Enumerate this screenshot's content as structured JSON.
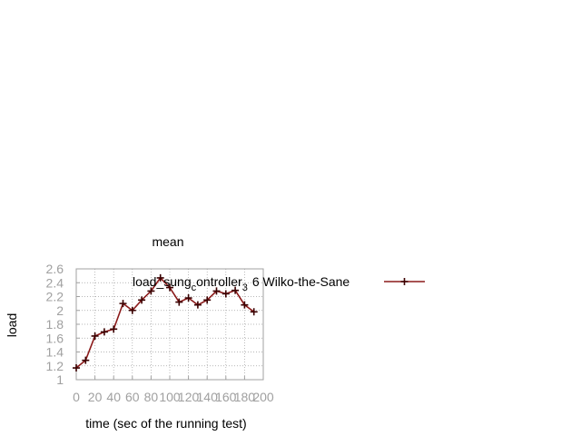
{
  "chart_data": {
    "type": "line",
    "title": "mean",
    "xlabel": "time (sec of the running test)",
    "ylabel": "load",
    "xlim": [
      0,
      200
    ],
    "ylim": [
      1,
      2.6
    ],
    "xticks": [
      0,
      20,
      40,
      60,
      80,
      100,
      120,
      140,
      160,
      180,
      200
    ],
    "yticks": [
      1,
      1.2,
      1.4,
      1.6,
      1.8,
      2,
      2.2,
      2.4,
      2.6
    ],
    "xtick_labels": [
      "0",
      "20",
      "40",
      "60",
      "80",
      "100",
      "120",
      "140",
      "160",
      "180",
      "200"
    ],
    "ytick_labels": [
      "1",
      "1.2",
      "1.4",
      "1.6",
      "1.8",
      "2",
      "2.2",
      "2.4",
      "2.6"
    ],
    "grid": true,
    "legend_position": "top-right",
    "series": [
      {
        "legend_parts": {
          "main": "load_sung",
          "sub1": "c",
          "mid": "ontroller",
          "sub2": "3",
          "tail": "6 Wilko-the-Sane"
        },
        "color": "#8b1a1a",
        "marker": "plus",
        "x": [
          0,
          10,
          20,
          30,
          40,
          50,
          60,
          70,
          80,
          90,
          100,
          110,
          120,
          130,
          140,
          150,
          160,
          170,
          180,
          190
        ],
        "y": [
          1.17,
          1.28,
          1.63,
          1.69,
          1.73,
          2.1,
          2.0,
          2.15,
          2.28,
          2.47,
          2.33,
          2.12,
          2.18,
          2.08,
          2.15,
          2.28,
          2.24,
          2.29,
          2.08,
          1.98
        ]
      }
    ]
  }
}
